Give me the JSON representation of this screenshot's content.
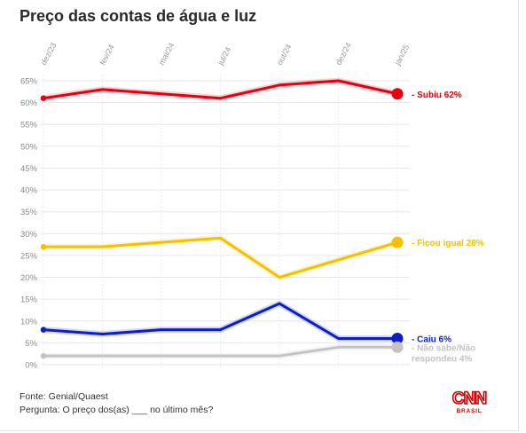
{
  "title": "Preço das contas de água e luz",
  "footer": {
    "source": "Fonte: Genial/Quaest",
    "question": "Pergunta: O preço dos(as) ___ no último mês?"
  },
  "logo": {
    "name": "CNN",
    "sub": "BRASIL",
    "color": "#cc0000"
  },
  "chart_data": {
    "type": "line",
    "title": "Preço das contas de água e luz",
    "x": [
      "dez/23",
      "fev/24",
      "mai/24",
      "jul/24",
      "out/24",
      "dez/24",
      "jan/25"
    ],
    "ylim": [
      0,
      65
    ],
    "yticks": [
      "0%",
      "5%",
      "10%",
      "15%",
      "20%",
      "25%",
      "30%",
      "35%",
      "40%",
      "45%",
      "50%",
      "55%",
      "60%",
      "65%"
    ],
    "grid": true,
    "series": [
      {
        "name": "Subiu",
        "label": "- Subiu 62%",
        "color": "#e3000f",
        "values": [
          61,
          63,
          62,
          61,
          64,
          65,
          62
        ]
      },
      {
        "name": "Ficou igual",
        "label": "- Ficou igual 28%",
        "color": "#f5c000",
        "values": [
          27,
          27,
          28,
          29,
          20,
          24,
          28
        ]
      },
      {
        "name": "Caiu",
        "label": "- Caiu 6%",
        "color": "#0d1fc4",
        "values": [
          8,
          7,
          8,
          8,
          14,
          6,
          6
        ]
      },
      {
        "name": "Não sabe/Não respondeu",
        "label": "- Não sabe/Não respondeu 4%",
        "label_lines": [
          "- Não sabe/Não",
          "respondeu 4%"
        ],
        "color": "#c4c4c4",
        "values": [
          2,
          2,
          2,
          2,
          2,
          4,
          4
        ]
      }
    ]
  }
}
